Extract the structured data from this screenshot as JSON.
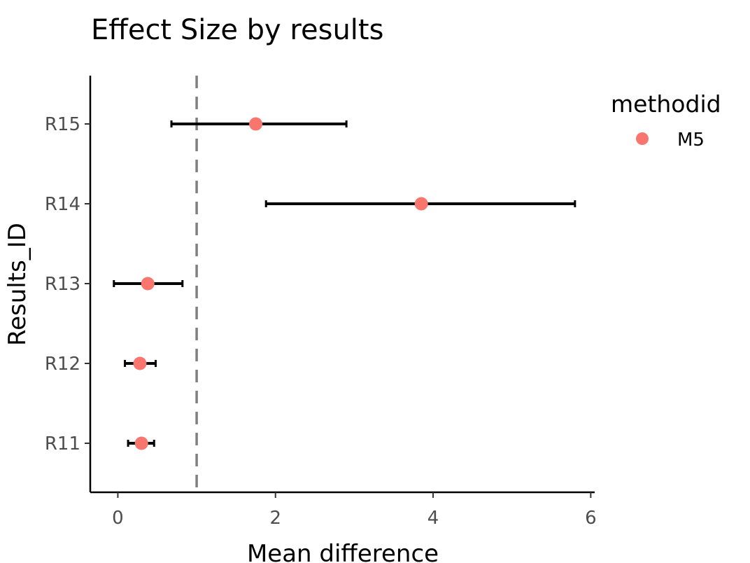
{
  "chart_data": {
    "type": "scatter",
    "title": "Effect Size by results",
    "xlabel": "Mean difference",
    "ylabel": "Results_ID",
    "xlim": [
      -0.35,
      6.05
    ],
    "x_ticks": [
      0,
      2,
      4,
      6
    ],
    "categories": [
      "R11",
      "R12",
      "R13",
      "R14",
      "R15"
    ],
    "reference_line": {
      "x": 1,
      "style": "dashed",
      "color": "#808080"
    },
    "grid": false,
    "legend": {
      "title": "methodid",
      "position": "right",
      "entries": [
        {
          "label": "M5",
          "color": "#F8766D"
        }
      ]
    },
    "series": [
      {
        "name": "M5",
        "color": "#F8766D",
        "points": [
          {
            "y": "R11",
            "x": 0.3,
            "lower": 0.13,
            "upper": 0.46
          },
          {
            "y": "R12",
            "x": 0.28,
            "lower": 0.09,
            "upper": 0.48
          },
          {
            "y": "R13",
            "x": 0.38,
            "lower": -0.05,
            "upper": 0.82
          },
          {
            "y": "R14",
            "x": 3.85,
            "lower": 1.88,
            "upper": 5.8
          },
          {
            "y": "R15",
            "x": 1.75,
            "lower": 0.68,
            "upper": 2.9
          }
        ]
      }
    ],
    "errorbar_color": "#000000"
  }
}
